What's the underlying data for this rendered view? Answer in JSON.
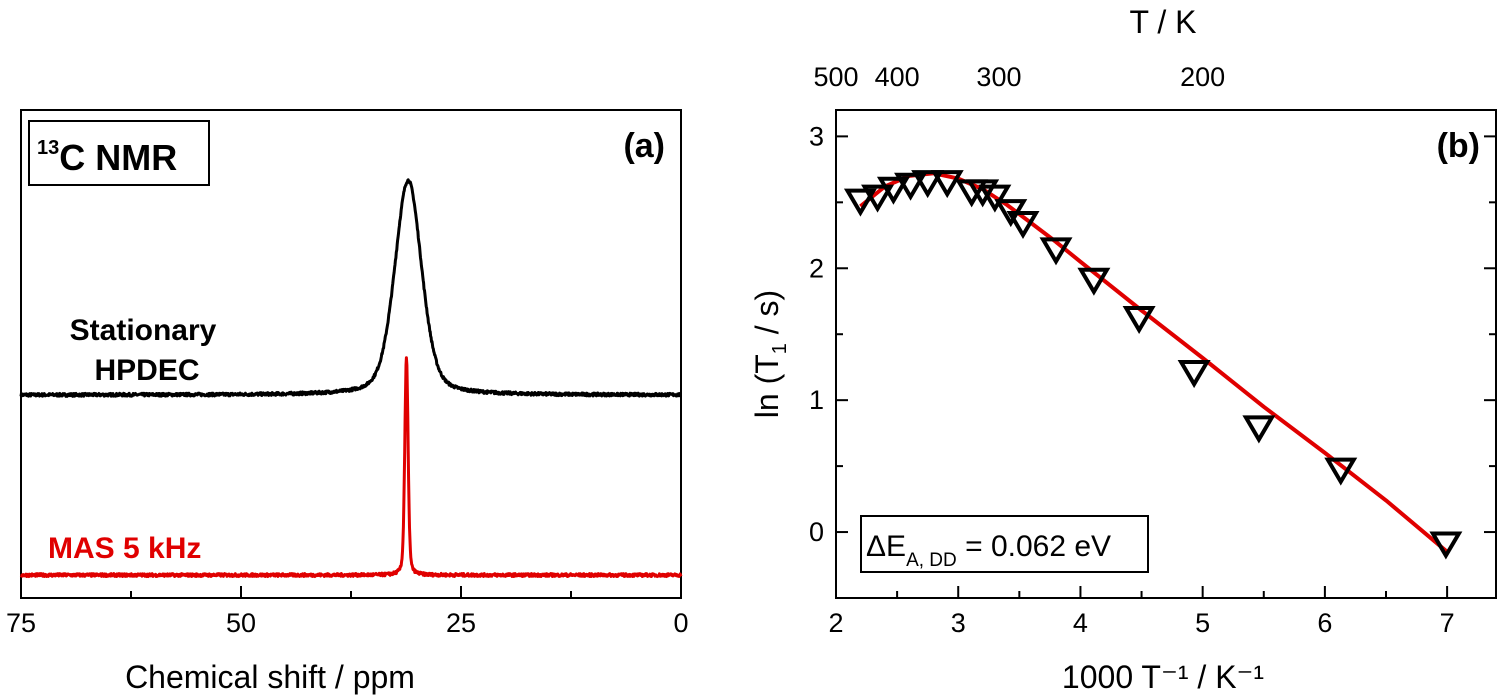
{
  "chart_data": [
    {
      "panel": "(a)",
      "type": "line",
      "xlabel": "Chemical shift / ppm",
      "ylabel": "",
      "xlim": [
        75,
        0
      ],
      "x_reversed": true,
      "xticks": [
        "75",
        "50",
        "25",
        "0"
      ],
      "ylim": [
        0,
        1
      ],
      "yticks_shown": false,
      "box_label": {
        "sup": "13",
        "text": "C NMR"
      },
      "series": [
        {
          "name": "Stationary HPDEC",
          "name_lines": [
            "Stationary",
            "HPDEC"
          ],
          "color": "#000000",
          "peak_ppm": 31.0,
          "fwhm_ppm": 3.6,
          "baseline": 0.416,
          "peak_height": 0.44
        },
        {
          "name": "MAS 5 kHz",
          "name_lines": [
            "MAS 5 kHz"
          ],
          "color": "#e00000",
          "peak_ppm": 31.2,
          "fwhm_ppm": 0.45,
          "baseline": 0.047,
          "peak_height": 0.445
        }
      ]
    },
    {
      "panel": "(b)",
      "type": "scatter",
      "xlabel": "1000 T⁻¹ / K⁻¹",
      "xlabel_parts": {
        "a": "1000 T",
        "sup1": "-1",
        "b": " / K",
        "sup2": "-1"
      },
      "ylabel_parts": {
        "a": "ln (T",
        "sub": "1",
        "b": " / s)"
      },
      "top_xlabel": "T / K",
      "top_xticks": [
        {
          "label": "500",
          "T": 500
        },
        {
          "label": "400",
          "T": 400
        },
        {
          "label": "300",
          "T": 300
        },
        {
          "label": "200",
          "T": 200
        }
      ],
      "xlim": [
        2,
        7.4
      ],
      "ylim": [
        -0.5,
        3.2
      ],
      "xticks": [
        2,
        3,
        4,
        5,
        6,
        7
      ],
      "yticks": [
        0,
        1,
        2,
        3
      ],
      "annotation": {
        "delta": "ΔE",
        "sub": "A, DD",
        "rest": " = 0.062 eV"
      },
      "marker": "down-triangle",
      "points": {
        "x": [
          2.2,
          2.34,
          2.47,
          2.61,
          2.75,
          2.91,
          3.11,
          3.2,
          3.3,
          3.43,
          3.53,
          3.8,
          4.11,
          4.48,
          4.93,
          5.46,
          6.13,
          6.99
        ],
        "y": [
          2.53,
          2.56,
          2.62,
          2.65,
          2.67,
          2.67,
          2.6,
          2.6,
          2.56,
          2.45,
          2.36,
          2.16,
          1.93,
          1.64,
          1.23,
          0.81,
          0.49,
          -0.07
        ]
      },
      "fit": {
        "color": "#e00000",
        "x": [
          2.2,
          2.4,
          2.6,
          2.8,
          3.0,
          3.2,
          3.4,
          3.6,
          3.8,
          4.0,
          4.5,
          5.0,
          5.5,
          6.0,
          6.5,
          7.0
        ],
        "y": [
          2.47,
          2.62,
          2.7,
          2.72,
          2.68,
          2.6,
          2.48,
          2.34,
          2.2,
          2.05,
          1.68,
          1.32,
          0.95,
          0.6,
          0.24,
          -0.15
        ]
      }
    }
  ]
}
